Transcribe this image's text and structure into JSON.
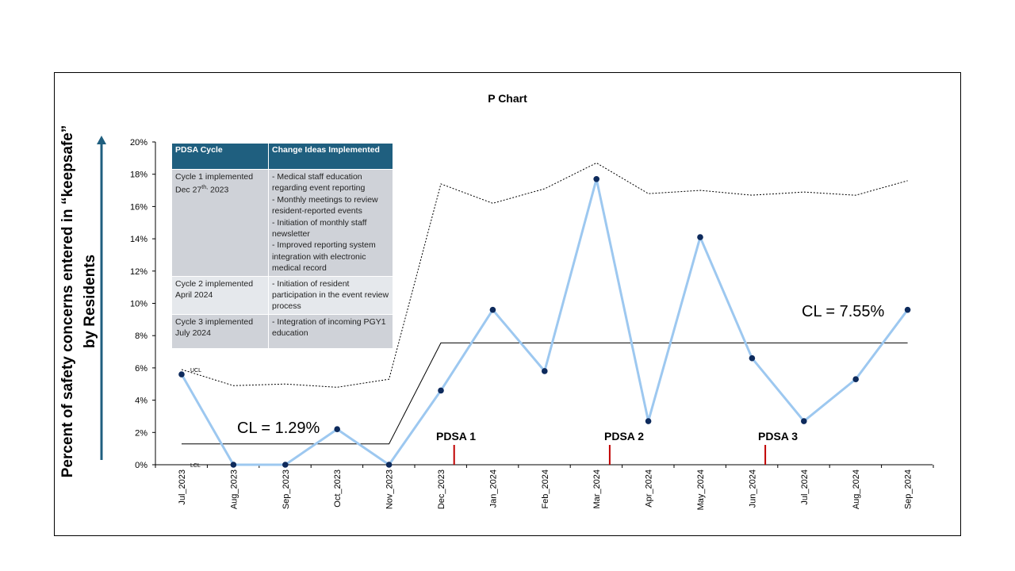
{
  "chart_data": {
    "type": "line",
    "title": "P Chart",
    "ylabel_line1": "Percent of safety concerns entered in “keepsafe”",
    "ylabel_line2": "by Residents",
    "xlabel": "",
    "categories": [
      "Jul_2023",
      "Aug_2023",
      "Sep_2023",
      "Oct_2023",
      "Nov_2023",
      "Dec_2023",
      "Jan_2024",
      "Feb_2024",
      "Mar_2024",
      "Apr_2024",
      "May_2024",
      "Jun_2024",
      "Jul_2024",
      "Aug_2024",
      "Sep_2024"
    ],
    "ylim": [
      0,
      20
    ],
    "yticks": [
      0,
      2,
      4,
      6,
      8,
      10,
      12,
      14,
      16,
      18,
      20
    ],
    "ytick_labels": [
      "0%",
      "2%",
      "4%",
      "6%",
      "8%",
      "10%",
      "12%",
      "14%",
      "16%",
      "18%",
      "20%"
    ],
    "grid": false,
    "series": [
      {
        "name": "",
        "values": [
          5.6,
          0.0,
          0.0,
          2.2,
          0.0,
          4.6,
          9.6,
          5.8,
          17.7,
          2.7,
          14.1,
          6.6,
          2.7,
          5.3,
          9.6
        ],
        "color": "#9dc8f0",
        "marker_color": "#0d2a5c"
      },
      {
        "name": "UCL",
        "values": [
          5.9,
          4.9,
          5.0,
          4.8,
          5.3,
          17.4,
          16.2,
          17.1,
          18.7,
          16.8,
          17.0,
          16.7,
          16.9,
          16.7,
          17.6
        ],
        "color": "#000000",
        "style": "dotted"
      },
      {
        "name": "LCL",
        "values": [
          0,
          0,
          0,
          0,
          0,
          0,
          0,
          0,
          0,
          0,
          0,
          0,
          0,
          0,
          0
        ],
        "color": "#000000",
        "style": "dotted"
      }
    ],
    "center_lines": [
      {
        "label": "CL = 1.29%",
        "value": 1.29,
        "from_index": 0,
        "to_index": 4
      },
      {
        "label": "CL = 7.55%",
        "value": 7.55,
        "from_index": 5,
        "to_index": 14
      }
    ],
    "annotations": [
      {
        "label": "PDSA 1",
        "after_index": 5,
        "color": "#c00000"
      },
      {
        "label": "PDSA 2",
        "after_index": 8,
        "color": "#c00000"
      },
      {
        "label": "PDSA 3",
        "after_index": 11,
        "color": "#c00000"
      }
    ],
    "ucl_label": "UCL",
    "lcl_label": "LCL",
    "arrow_color": "#1f5f7f"
  },
  "table": {
    "headers": [
      "PDSA Cycle",
      "Change Ideas Implemented"
    ],
    "rows": [
      {
        "cycle_main": "Cycle 1 implemented Dec 27",
        "cycle_sup": "th,",
        "cycle_tail": " 2023",
        "ideas": [
          "- Medical staff education regarding event reporting",
          "- Monthly meetings to review resident-reported events",
          "- Initiation of monthly staff newsletter",
          "- Improved reporting system integration with electronic medical record"
        ]
      },
      {
        "cycle": "Cycle 2 implemented April 2024",
        "ideas": [
          "- Initiation of resident participation in the event review process"
        ]
      },
      {
        "cycle": "Cycle 3 implemented July 2024",
        "ideas": [
          "- Integration of incoming PGY1 education"
        ]
      }
    ]
  }
}
